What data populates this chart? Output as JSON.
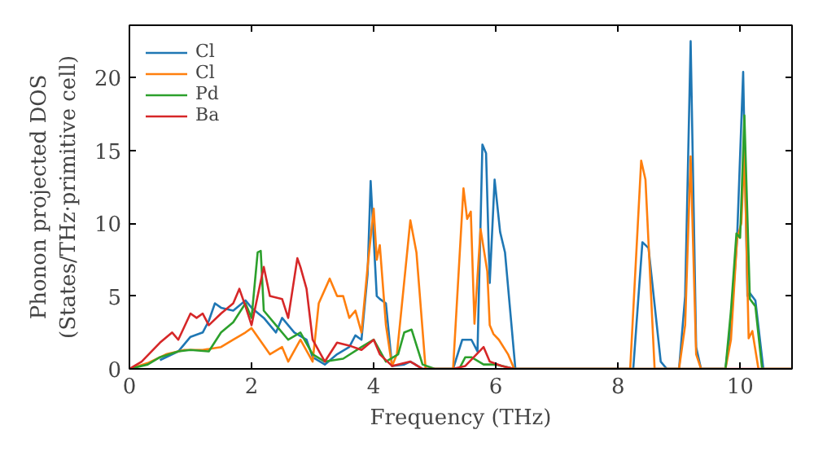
{
  "chart_data": {
    "type": "line",
    "xlabel": "Frequency (THz)",
    "ylabel": "Phonon projected DOS\n(States/THz·primitive cell)",
    "xlim": [
      0,
      10.85
    ],
    "ylim": [
      0,
      23.6
    ],
    "xticks": [
      0,
      2,
      4,
      6,
      8,
      10
    ],
    "yticks": [
      0,
      5,
      10,
      15,
      20
    ],
    "grid": false,
    "legend": "top left",
    "series": [
      {
        "name": "Cl",
        "color": "#1f77b4",
        "x": [
          0.5,
          0.8,
          1.0,
          1.2,
          1.3,
          1.4,
          1.5,
          1.7,
          1.9,
          2.0,
          2.2,
          2.4,
          2.5,
          2.7,
          2.9,
          3.0,
          3.2,
          3.4,
          3.6,
          3.7,
          3.8,
          3.9,
          3.95,
          4.05,
          4.1,
          4.2,
          4.3,
          4.5,
          4.6,
          4.8,
          5.3,
          5.45,
          5.6,
          5.7,
          5.78,
          5.84,
          5.9,
          5.98,
          6.07,
          6.15,
          6.32,
          8.25,
          8.4,
          8.5,
          8.7,
          8.8,
          9.0,
          9.1,
          9.19,
          9.28,
          9.36,
          9.76,
          9.85,
          9.95,
          10.05,
          10.12,
          10.16,
          10.25,
          10.38
        ],
        "values": [
          0.6,
          1.2,
          2.2,
          2.5,
          3.3,
          4.5,
          4.2,
          4.0,
          4.7,
          4.2,
          3.5,
          2.5,
          3.5,
          2.5,
          2.0,
          0.8,
          0.3,
          1.0,
          1.5,
          2.3,
          2.0,
          6.5,
          12.9,
          5.0,
          4.8,
          4.5,
          0.2,
          0.3,
          0.5,
          0,
          0,
          2.0,
          2.0,
          1.2,
          15.4,
          14.8,
          5.9,
          13.0,
          9.4,
          8.0,
          0,
          0,
          8.7,
          8.3,
          0.5,
          0,
          0,
          5.0,
          22.5,
          1.5,
          0,
          0,
          3.0,
          8.9,
          20.4,
          5.0,
          5.2,
          4.7,
          0
        ]
      },
      {
        "name": "Cl",
        "color": "#ff7f0e",
        "x": [
          0,
          0.3,
          0.6,
          0.9,
          1.2,
          1.5,
          1.7,
          1.9,
          2.0,
          2.3,
          2.5,
          2.6,
          2.8,
          3.0,
          3.1,
          3.28,
          3.4,
          3.5,
          3.6,
          3.7,
          3.8,
          3.9,
          4.0,
          4.05,
          4.1,
          4.2,
          4.3,
          4.38,
          4.5,
          4.6,
          4.7,
          4.85,
          5.3,
          5.47,
          5.53,
          5.59,
          5.65,
          5.75,
          5.86,
          5.9,
          5.96,
          6.05,
          6.2,
          6.3,
          8.2,
          8.38,
          8.45,
          8.6,
          9.0,
          9.1,
          9.19,
          9.28,
          9.36,
          9.76,
          9.85,
          9.95,
          10.02,
          10.07,
          10.14,
          10.2,
          10.3,
          10.85
        ],
        "values": [
          0,
          0.4,
          1.0,
          1.3,
          1.3,
          1.5,
          2.0,
          2.5,
          2.8,
          1.0,
          1.5,
          0.5,
          2.0,
          0.5,
          4.5,
          6.2,
          5.0,
          5.0,
          3.5,
          4.0,
          2.5,
          7.0,
          11.0,
          7.5,
          8.5,
          3.0,
          0.2,
          1.0,
          6.0,
          10.2,
          8.0,
          0,
          0,
          12.4,
          10.3,
          10.8,
          3.1,
          9.6,
          6.7,
          3.0,
          2.4,
          2.0,
          1.0,
          0,
          0,
          14.3,
          13.0,
          0,
          0,
          3.0,
          14.6,
          1.0,
          0,
          0,
          2.0,
          8.9,
          10.0,
          15.0,
          2.1,
          2.6,
          0,
          0
        ]
      },
      {
        "name": "Pd",
        "color": "#2ca02c",
        "x": [
          0,
          0.3,
          0.5,
          0.8,
          1.0,
          1.3,
          1.5,
          1.7,
          1.9,
          2.0,
          2.1,
          2.15,
          2.2,
          2.4,
          2.6,
          2.8,
          3.0,
          3.2,
          3.5,
          3.8,
          4.0,
          4.2,
          4.4,
          4.5,
          4.62,
          4.8,
          5.0,
          5.4,
          5.5,
          5.6,
          5.8,
          6.0,
          6.3,
          9.76,
          9.85,
          9.94,
          10.0,
          10.07,
          10.16,
          10.25,
          10.36,
          10.85
        ],
        "values": [
          0,
          0.3,
          0.8,
          1.2,
          1.3,
          1.2,
          2.5,
          3.2,
          4.5,
          3.5,
          8.0,
          8.1,
          4.0,
          3.0,
          2.0,
          2.5,
          1.0,
          0.5,
          0.7,
          1.5,
          2.0,
          0.5,
          1.0,
          2.5,
          2.7,
          0.3,
          0,
          0,
          0.8,
          0.8,
          0.3,
          0.3,
          0,
          0,
          4.0,
          9.3,
          9.0,
          17.4,
          4.8,
          4.3,
          0,
          0
        ]
      },
      {
        "name": "Ba",
        "color": "#d62728",
        "x": [
          0,
          0.2,
          0.5,
          0.7,
          0.8,
          1.0,
          1.1,
          1.2,
          1.3,
          1.5,
          1.7,
          1.8,
          1.9,
          2.0,
          2.2,
          2.3,
          2.5,
          2.6,
          2.75,
          2.8,
          2.9,
          3.0,
          3.2,
          3.4,
          3.6,
          3.8,
          4.0,
          4.1,
          4.3,
          4.6,
          4.8,
          5.3,
          5.5,
          5.8,
          5.9,
          6.1,
          6.3,
          10.85
        ],
        "values": [
          0,
          0.5,
          1.8,
          2.5,
          2.0,
          3.8,
          3.5,
          3.8,
          3.0,
          3.8,
          4.5,
          5.5,
          4.3,
          3.0,
          7.0,
          5.0,
          4.8,
          3.5,
          7.6,
          7.0,
          5.5,
          2.0,
          0.5,
          1.8,
          1.6,
          1.3,
          2.0,
          1.0,
          0.2,
          0.5,
          0,
          0,
          0.2,
          1.5,
          0.5,
          0.2,
          0,
          0
        ]
      }
    ]
  }
}
